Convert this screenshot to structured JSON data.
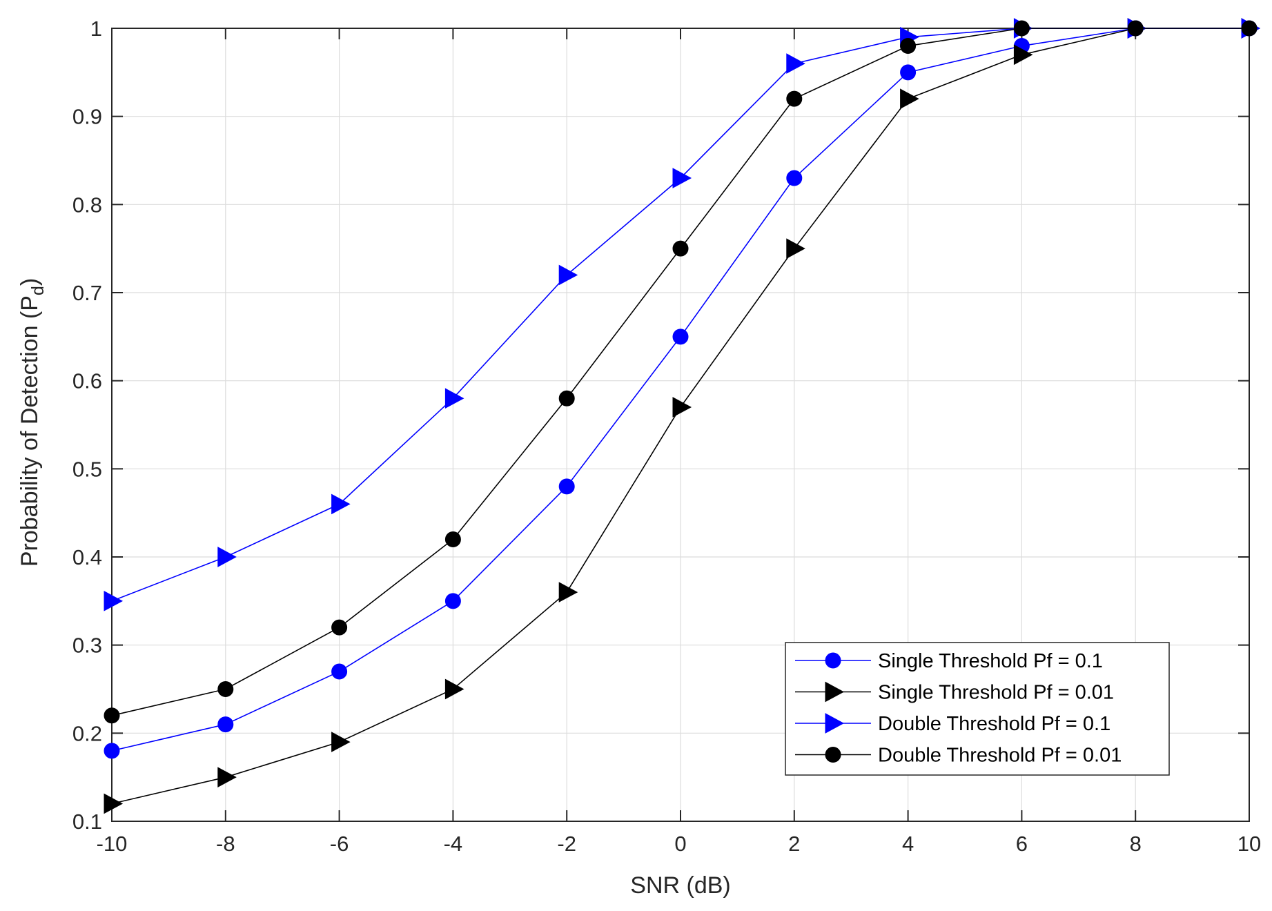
{
  "chart_data": {
    "type": "line",
    "title": "",
    "xlabel": "SNR (dB)",
    "ylabel": {
      "main": "Probability of Detection (P",
      "sub": "d",
      "close": ")"
    },
    "xlim": [
      -10,
      10
    ],
    "ylim": [
      0.1,
      1
    ],
    "grid": true,
    "legend_position": "bottom-right",
    "x": [
      -10,
      -8,
      -6,
      -4,
      -2,
      0,
      2,
      4,
      6,
      8,
      10
    ],
    "x_tick_labels": [
      "-10",
      "-8",
      "-6",
      "-4",
      "-2",
      "0",
      "2",
      "4",
      "6",
      "8",
      "10"
    ],
    "y_ticks": [
      0.1,
      0.2,
      0.3,
      0.4,
      0.5,
      0.6,
      0.7,
      0.8,
      0.9,
      1
    ],
    "y_tick_labels": [
      "0.1",
      "0.2",
      "0.3",
      "0.4",
      "0.5",
      "0.6",
      "0.7",
      "0.8",
      "0.9",
      "1"
    ],
    "series": [
      {
        "name": "Single Threshold Pf = 0.1",
        "color": "#0000ff",
        "marker": "circle",
        "values": [
          0.18,
          0.21,
          0.27,
          0.35,
          0.48,
          0.65,
          0.83,
          0.95,
          0.98,
          1.0,
          1.0
        ]
      },
      {
        "name": "Single Threshold Pf = 0.01",
        "color": "#000000",
        "marker": "triangle-right",
        "values": [
          0.12,
          0.15,
          0.19,
          0.25,
          0.36,
          0.57,
          0.75,
          0.92,
          0.97,
          1.0,
          1.0
        ]
      },
      {
        "name": "Double Threshold Pf = 0.1",
        "color": "#0000ff",
        "marker": "triangle-right",
        "values": [
          0.35,
          0.4,
          0.46,
          0.58,
          0.72,
          0.83,
          0.96,
          0.99,
          1.0,
          1.0,
          1.0
        ]
      },
      {
        "name": "Double Threshold Pf = 0.01",
        "color": "#000000",
        "marker": "circle",
        "values": [
          0.22,
          0.25,
          0.32,
          0.42,
          0.58,
          0.75,
          0.92,
          0.98,
          1.0,
          1.0,
          1.0
        ]
      }
    ]
  }
}
